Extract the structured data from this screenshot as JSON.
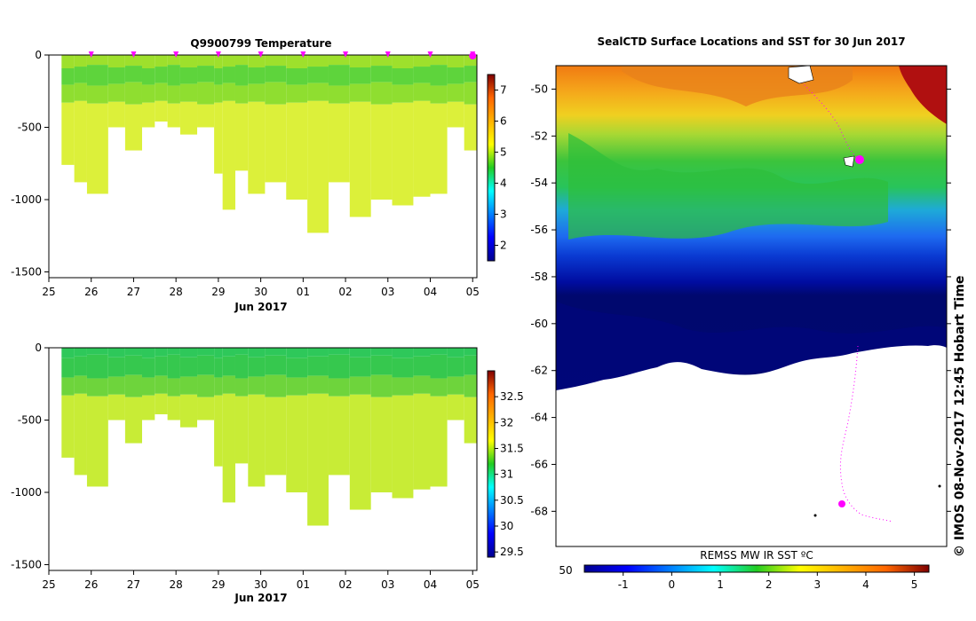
{
  "chart_data": [
    {
      "type": "heatmap",
      "title": "Q9900799  Temperature",
      "x_ticks": [
        "25",
        "26",
        "27",
        "28",
        "29",
        "30",
        "01",
        "02",
        "03",
        "04",
        "05"
      ],
      "x_sublabel": "Jun 2017",
      "y_ticks": [
        "0",
        "-500",
        "-1000",
        "-1500"
      ],
      "ylim": [
        -1540,
        0
      ],
      "colorbar_ticks": [
        "7",
        "6",
        "5",
        "4",
        "3",
        "2"
      ],
      "colorbar_range": [
        1.5,
        7.5
      ],
      "profile_markers": 10,
      "profiles": [
        {
          "x": 25.3,
          "bottom": -760
        },
        {
          "x": 25.6,
          "bottom": -880
        },
        {
          "x": 25.9,
          "bottom": -960
        },
        {
          "x": 26.4,
          "bottom": -500
        },
        {
          "x": 26.8,
          "bottom": -660
        },
        {
          "x": 27.2,
          "bottom": -500
        },
        {
          "x": 27.5,
          "bottom": -460
        },
        {
          "x": 27.8,
          "bottom": -500
        },
        {
          "x": 28.1,
          "bottom": -550
        },
        {
          "x": 28.5,
          "bottom": -500
        },
        {
          "x": 28.9,
          "bottom": -820
        },
        {
          "x": 29.1,
          "bottom": -1070
        },
        {
          "x": 29.4,
          "bottom": -800
        },
        {
          "x": 29.7,
          "bottom": -960
        },
        {
          "x": 30.1,
          "bottom": -880
        },
        {
          "x": 30.6,
          "bottom": -1000
        },
        {
          "x": 31.1,
          "bottom": -1230
        },
        {
          "x": 31.6,
          "bottom": -880
        },
        {
          "x": 32.1,
          "bottom": -1120
        },
        {
          "x": 32.6,
          "bottom": -1000
        },
        {
          "x": 33.1,
          "bottom": -1040
        },
        {
          "x": 33.6,
          "bottom": -980
        },
        {
          "x": 34.0,
          "bottom": -960
        },
        {
          "x": 34.4,
          "bottom": -500
        },
        {
          "x": 34.8,
          "bottom": -660
        }
      ]
    },
    {
      "type": "heatmap",
      "title": "",
      "x_ticks": [
        "25",
        "26",
        "27",
        "28",
        "29",
        "30",
        "01",
        "02",
        "03",
        "04",
        "05"
      ],
      "x_sublabel": "Jun 2017",
      "y_ticks": [
        "0",
        "-500",
        "-1000",
        "-1500"
      ],
      "ylim": [
        -1540,
        0
      ],
      "colorbar_ticks": [
        "32.5",
        "32",
        "31.5",
        "31",
        "30.5",
        "30",
        "29.5"
      ],
      "colorbar_range": [
        29.4,
        33.0
      ]
    },
    {
      "type": "heatmap",
      "title": "SealCTD Surface Locations and SST for 30 Jun 2017",
      "y_ticks": [
        "-50",
        "-52",
        "-54",
        "-56",
        "-58",
        "-60",
        "-62",
        "-64",
        "-66",
        "-68"
      ],
      "ylim": [
        -69.5,
        -49
      ]
    }
  ],
  "colorbar_main": {
    "label": "REMSS MW IR SST ",
    "unit_symbol": "ºC",
    "left_value": "50",
    "ticks": [
      "-1",
      "0",
      "1",
      "2",
      "3",
      "4",
      "5"
    ],
    "range": [
      -1.8,
      5.3
    ]
  },
  "credit": "© IMOS 08-Nov-2017 12:45 Hobart Time",
  "colors": {
    "marker": "#ff00ff",
    "track": "#ff00ff"
  }
}
